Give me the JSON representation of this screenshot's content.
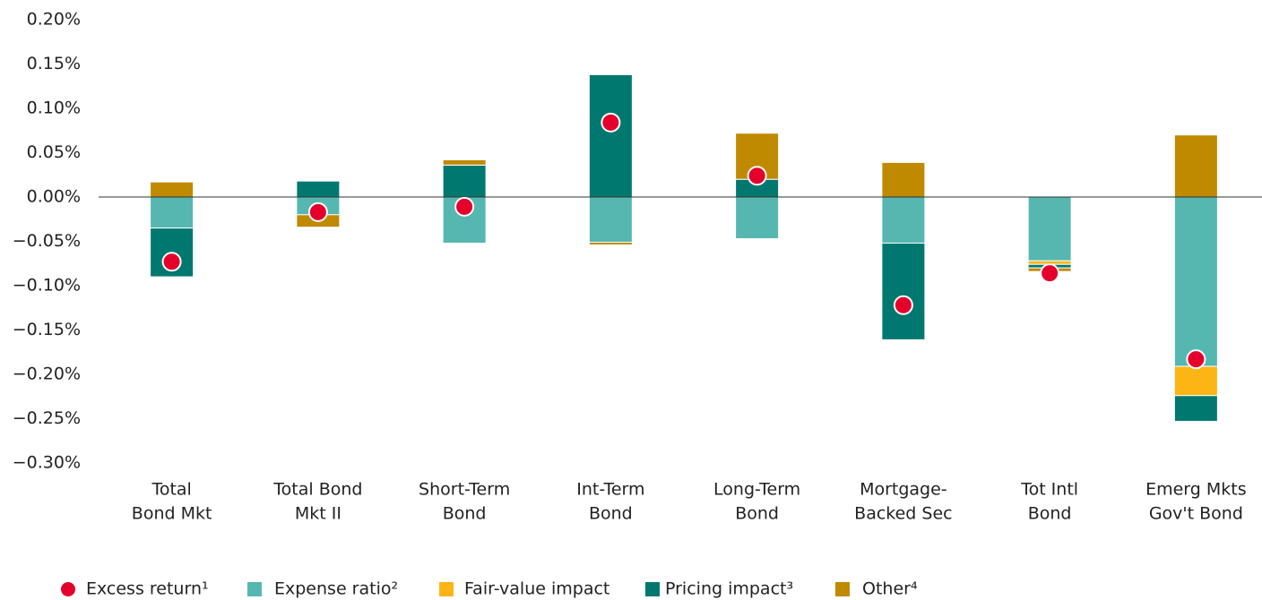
{
  "chart_data": {
    "type": "bar",
    "stacked": true,
    "categories": [
      [
        "Total",
        "Bond Mkt"
      ],
      [
        "Total Bond",
        "Mkt II"
      ],
      [
        "Short-Term",
        "Bond"
      ],
      [
        "Int-Term",
        "Bond"
      ],
      [
        "Long-Term",
        "Bond"
      ],
      [
        "Mortgage-",
        "Backed Sec"
      ],
      [
        "Tot Intl",
        "Bond"
      ],
      [
        "Emerg Mkts",
        "Gov't Bond"
      ]
    ],
    "series": [
      {
        "name": "Expense ratio²",
        "color": "#56b7b0",
        "values": [
          -0.035,
          -0.02,
          -0.052,
          -0.051,
          -0.047,
          -0.052,
          -0.072,
          -0.191
        ]
      },
      {
        "name": "Fair-value impact",
        "color": "#fdb515",
        "values": [
          0,
          0,
          0,
          0,
          0,
          0,
          -0.004,
          -0.033
        ]
      },
      {
        "name": "Pricing impact³",
        "color": "#00786f",
        "values": [
          -0.055,
          0.018,
          0.036,
          0.138,
          0.02,
          -0.109,
          -0.004,
          -0.029
        ]
      },
      {
        "name": "Other⁴",
        "color": "#c08a00",
        "values": [
          0.017,
          -0.014,
          0.006,
          -0.003,
          0.052,
          0.039,
          -0.004,
          0.07
        ]
      }
    ],
    "points": {
      "name": "Excess return¹",
      "color": "#e4002b",
      "values": [
        -0.073,
        -0.017,
        -0.011,
        0.084,
        0.024,
        -0.122,
        -0.086,
        -0.183
      ]
    },
    "ylim": [
      -0.3,
      0.2
    ],
    "yticks": [
      {
        "value": -0.3,
        "label": "−0.30%"
      },
      {
        "value": -0.25,
        "label": "−0.25%"
      },
      {
        "value": -0.2,
        "label": "−0.20%"
      },
      {
        "value": -0.15,
        "label": "−0.15%"
      },
      {
        "value": -0.1,
        "label": "−0.10%"
      },
      {
        "value": -0.05,
        "label": "−0.05%"
      },
      {
        "value": 0,
        "label": "0.00%"
      },
      {
        "value": 0.05,
        "label": "0.05%"
      },
      {
        "value": 0.1,
        "label": "0.10%"
      },
      {
        "value": 0.15,
        "label": "0.15%"
      },
      {
        "value": 0.2,
        "label": "0.20%"
      }
    ],
    "legend": "bottom-left"
  }
}
